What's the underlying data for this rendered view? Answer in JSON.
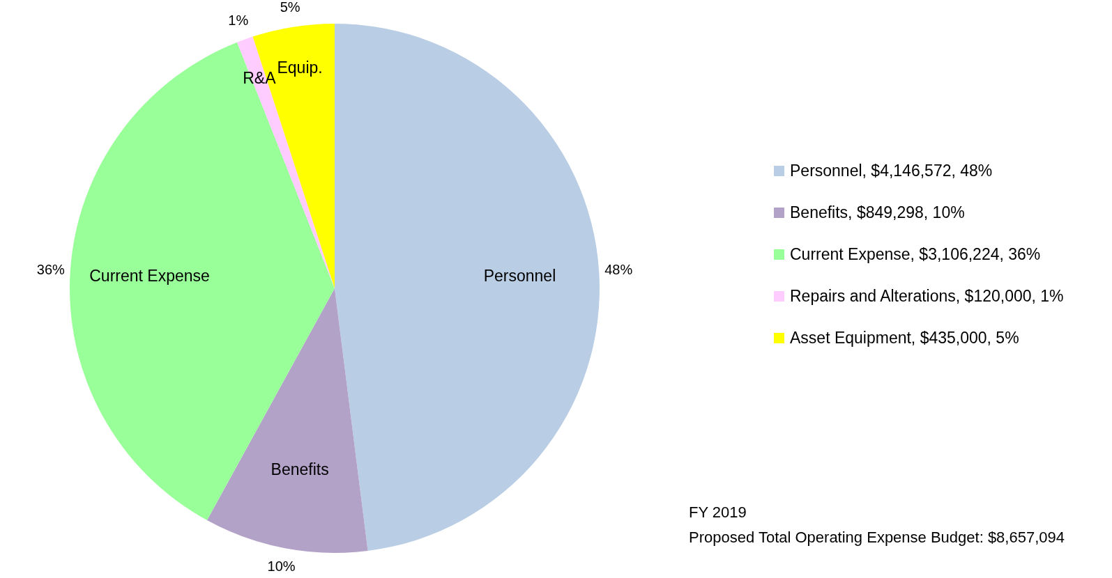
{
  "chart_data": {
    "type": "pie",
    "categories": [
      "Personnel, $4,146,572, 48%",
      "Benefits, $849,298, 10%",
      "Current Expense, $3,106,224, 36%",
      "Repairs and Alterations, $120,000, 1%",
      "Asset Equipment, $435,000, 5%"
    ],
    "values": [
      48,
      10,
      36,
      1,
      5
    ],
    "colors": [
      "#b9cde4",
      "#b3a2c7",
      "#99ff99",
      "#ffccff",
      "#ffff00"
    ],
    "value_labels": [
      "48%",
      "10%",
      "36%",
      "1%",
      "5%"
    ],
    "annotations": [
      "Personnel",
      "Benefits",
      "Current Expense",
      "R&A",
      "Equip.",
      "FY 2019\nProposed Total Operating Expense Budget: $8,657,094"
    ],
    "legend": "right"
  }
}
